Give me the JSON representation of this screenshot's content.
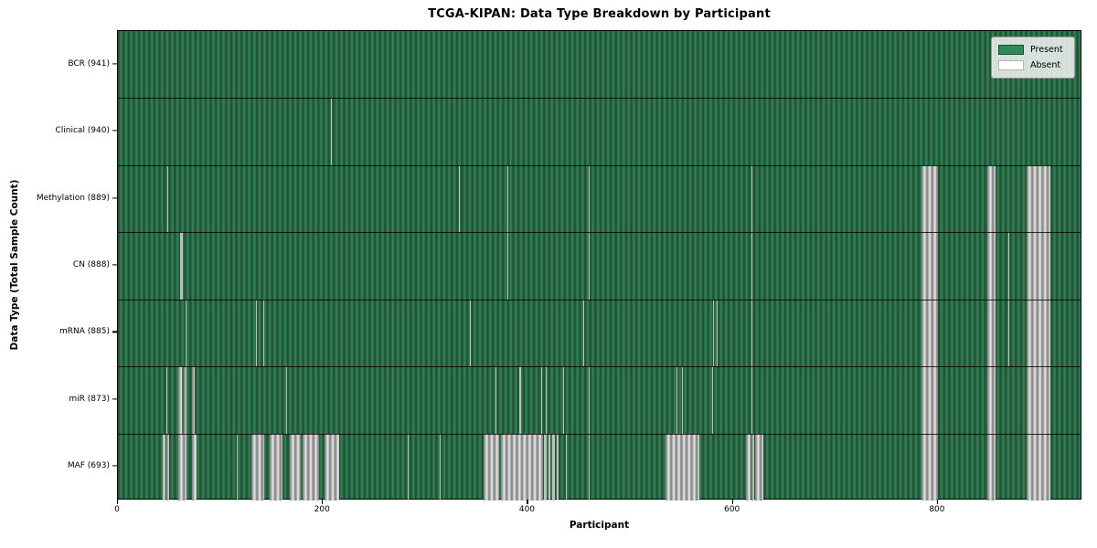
{
  "chart_data": {
    "type": "heatmap",
    "title": "TCGA-KIPAN: Data Type Breakdown by Participant",
    "xlabel": "Participant",
    "ylabel": "Data Type (Total Sample Count)",
    "x_ticks": [
      0,
      200,
      400,
      600,
      800
    ],
    "x_range": [
      0,
      941
    ],
    "n_participants": 941,
    "grid": false,
    "legend": {
      "position": "upper-right",
      "entries": [
        {
          "label": "Present",
          "color": "#2e8b57"
        },
        {
          "label": "Absent",
          "color": "#ffffff"
        }
      ]
    },
    "colors": {
      "present_fill": "#2e8b57",
      "present_edge": "#1e5434",
      "absent_fill": "#ffffff",
      "absent_edge": "#8a8a8a",
      "background": "#ffffff"
    },
    "rows": [
      {
        "label": "BCR (941)",
        "data_type": "BCR",
        "present_count": 941,
        "absent_count": 0,
        "absent_ranges": []
      },
      {
        "label": "Clinical (940)",
        "data_type": "Clinical",
        "present_count": 940,
        "absent_count": 1,
        "absent_ranges": [
          [
            208,
            208
          ]
        ]
      },
      {
        "label": "Methylation (889)",
        "data_type": "Methylation",
        "present_count": 889,
        "absent_count": 52,
        "absent_ranges": [
          [
            48,
            48
          ],
          [
            333,
            333
          ],
          [
            380,
            380
          ],
          [
            459,
            459
          ],
          [
            618,
            618
          ],
          [
            784,
            799
          ],
          [
            848,
            855
          ],
          [
            887,
            909
          ]
        ]
      },
      {
        "label": "CN (888)",
        "data_type": "CN",
        "present_count": 888,
        "absent_count": 53,
        "absent_ranges": [
          [
            61,
            62
          ],
          [
            380,
            380
          ],
          [
            459,
            459
          ],
          [
            618,
            618
          ],
          [
            869,
            869
          ],
          [
            784,
            799
          ],
          [
            848,
            855
          ],
          [
            887,
            909
          ]
        ]
      },
      {
        "label": "mRNA (885)",
        "data_type": "mRNA",
        "present_count": 885,
        "absent_count": 56,
        "absent_ranges": [
          [
            66,
            66
          ],
          [
            135,
            135
          ],
          [
            142,
            142
          ],
          [
            343,
            343
          ],
          [
            454,
            454
          ],
          [
            581,
            581
          ],
          [
            584,
            584
          ],
          [
            618,
            618
          ],
          [
            869,
            869
          ],
          [
            784,
            799
          ],
          [
            848,
            855
          ],
          [
            887,
            909
          ]
        ]
      },
      {
        "label": "miR (873)",
        "data_type": "miR",
        "present_count": 873,
        "absent_count": 68,
        "absent_ranges": [
          [
            47,
            47
          ],
          [
            59,
            61
          ],
          [
            64,
            66
          ],
          [
            72,
            74
          ],
          [
            164,
            164
          ],
          [
            368,
            368
          ],
          [
            392,
            392
          ],
          [
            413,
            413
          ],
          [
            417,
            417
          ],
          [
            434,
            434
          ],
          [
            459,
            459
          ],
          [
            545,
            545
          ],
          [
            550,
            550
          ],
          [
            580,
            580
          ],
          [
            618,
            618
          ],
          [
            784,
            799
          ],
          [
            848,
            855
          ],
          [
            887,
            909
          ]
        ]
      },
      {
        "label": "MAF (693)",
        "data_type": "MAF",
        "present_count": 693,
        "absent_count": 248,
        "absent_ranges": [
          [
            44,
            45
          ],
          [
            47,
            49
          ],
          [
            59,
            66
          ],
          [
            72,
            76
          ],
          [
            116,
            116
          ],
          [
            130,
            142
          ],
          [
            148,
            160
          ],
          [
            168,
            177
          ],
          [
            180,
            195
          ],
          [
            202,
            215
          ],
          [
            283,
            283
          ],
          [
            314,
            314
          ],
          [
            357,
            371
          ],
          [
            374,
            414
          ],
          [
            416,
            417
          ],
          [
            420,
            421
          ],
          [
            424,
            425
          ],
          [
            428,
            429
          ],
          [
            437,
            437
          ],
          [
            459,
            459
          ],
          [
            534,
            566
          ],
          [
            613,
            616
          ],
          [
            618,
            620
          ],
          [
            622,
            629
          ],
          [
            784,
            799
          ],
          [
            848,
            855
          ],
          [
            887,
            909
          ]
        ]
      }
    ]
  }
}
